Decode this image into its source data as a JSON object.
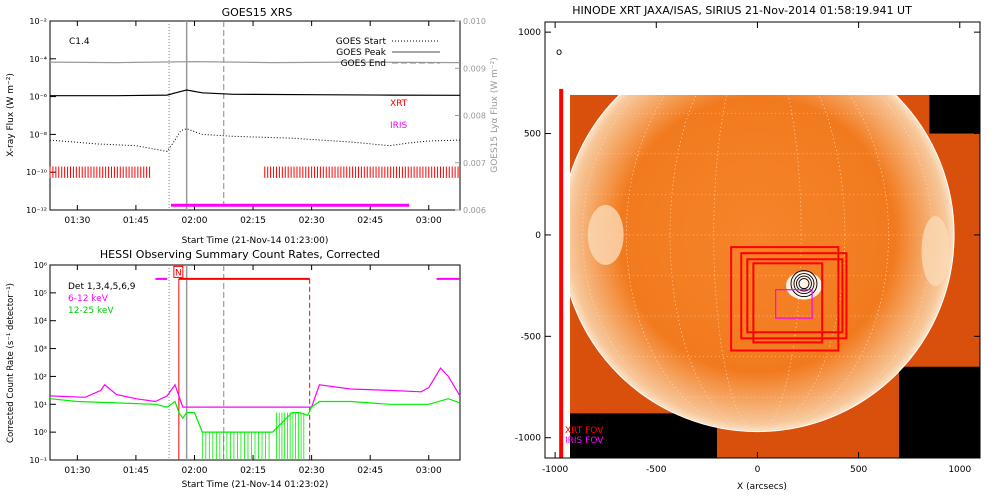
{
  "chart_data": [
    {
      "type": "line",
      "title": "GOES15 XRS",
      "xlabel": "Start Time (21-Nov-14 01:23:00)",
      "ylabel": "X-ray Flux (W m⁻²)",
      "ylabel_right": "GOES15 Lyα Flux (W m⁻²)",
      "x_ticks": [
        "01:30",
        "01:45",
        "02:00",
        "02:15",
        "02:30",
        "02:45",
        "03:00"
      ],
      "x_tick_minutes": [
        90,
        105,
        120,
        135,
        150,
        165,
        180
      ],
      "xlim_minutes": [
        83,
        188
      ],
      "ylim_log10": [
        -12,
        -2
      ],
      "y_ticks": [
        "10⁻²",
        "10⁻⁴",
        "10⁻⁶",
        "10⁻⁸",
        "10⁻¹⁰",
        "10⁻¹²"
      ],
      "y_tick_log10": [
        -2,
        -4,
        -6,
        -8,
        -10,
        -12
      ],
      "ylim_right": [
        0.006,
        0.01
      ],
      "y_ticks_right": [
        "0.010",
        "0.009",
        "0.008",
        "0.007",
        "0.006"
      ],
      "y_tick_right_values": [
        0.01,
        0.009,
        0.008,
        0.007,
        0.006
      ],
      "class_label": "C1.4",
      "legend": [
        "GOES Start",
        "GOES Peak",
        "GOES End"
      ],
      "legend_placement": "top-right",
      "goes_start_min": 113.5,
      "goes_peak_min": 118.0,
      "goes_end_min": 127.5,
      "series": [
        {
          "name": "",
          "color": "#000000",
          "x": [
            83,
            100,
            113,
            116,
            118,
            122,
            130,
            150,
            170,
            188
          ],
          "log10_y": [
            -5.95,
            -5.95,
            -5.92,
            -5.75,
            -5.65,
            -5.8,
            -5.88,
            -5.9,
            -5.92,
            -5.93
          ]
        },
        {
          "name": "",
          "color": "#000000",
          "dotted": true,
          "x": [
            83,
            95,
            105,
            113,
            115,
            116.5,
            118,
            122,
            130,
            145,
            160,
            170,
            175,
            180,
            188
          ],
          "log10_y": [
            -8.3,
            -8.5,
            -8.6,
            -8.9,
            -8.3,
            -7.8,
            -7.7,
            -8.0,
            -8.1,
            -8.2,
            -8.4,
            -8.6,
            -8.45,
            -8.35,
            -8.3
          ]
        },
        {
          "name": "",
          "color": "#9a9a9a",
          "x": [
            83,
            100,
            120,
            140,
            160,
            188
          ],
          "right_y": [
            0.00913,
            0.00912,
            0.00914,
            0.00912,
            0.00913,
            0.00912
          ]
        }
      ],
      "bars": [
        {
          "name": "XRT",
          "color": "#ff0000",
          "intervals_min": [
            [
              83,
              109
            ],
            [
              138,
              188
            ]
          ]
        },
        {
          "name": "IRIS",
          "color": "#ff00ff",
          "intervals_min": [
            [
              114,
              175
            ]
          ]
        }
      ]
    },
    {
      "type": "line",
      "title": "HESSI Observing Summary Count Rates, Corrected",
      "xlabel": "Start Time (21-Nov-14 01:23:02)",
      "ylabel": "Corrected Count Rate (s⁻¹ detector⁻¹)",
      "x_ticks": [
        "01:30",
        "01:45",
        "02:00",
        "02:15",
        "02:30",
        "02:45",
        "03:00"
      ],
      "x_tick_minutes": [
        90,
        105,
        120,
        135,
        150,
        165,
        180
      ],
      "xlim_minutes": [
        83,
        188
      ],
      "ylim_log10": [
        -1,
        6
      ],
      "y_ticks": [
        "10⁶",
        "10⁵",
        "10⁴",
        "10³",
        "10²",
        "10¹",
        "10⁰",
        "10⁻¹"
      ],
      "y_tick_log10": [
        6,
        5,
        4,
        3,
        2,
        1,
        0,
        -1
      ],
      "legend": [
        "Det 1,3,4,5,6,9",
        "6-12 keV",
        "12-25 keV"
      ],
      "legend_placement": "top-left",
      "night_label": "N",
      "goes_start_min": 113.5,
      "goes_peak_min": 118.0,
      "goes_end_min": 127.5,
      "markers_red_min": [
        116,
        149.5
      ],
      "series": [
        {
          "name": "6-12 keV",
          "color": "#ff00ff",
          "x": [
            83,
            92,
            96,
            97,
            100,
            105,
            110,
            113,
            115,
            117,
            150,
            152,
            160,
            170,
            178,
            180,
            183,
            185,
            188
          ],
          "log10_y": [
            1.3,
            1.25,
            1.5,
            1.7,
            1.35,
            1.2,
            1.1,
            1.3,
            1.7,
            0.9,
            0.9,
            1.7,
            1.55,
            1.5,
            1.45,
            1.6,
            2.3,
            2.0,
            1.3
          ]
        },
        {
          "name": "12-25 keV",
          "color": "#00ee00",
          "x": [
            83,
            90,
            100,
            110,
            113,
            115,
            116,
            117,
            118,
            120,
            122,
            140,
            145,
            147,
            149,
            150,
            152,
            160,
            170,
            180,
            185,
            188
          ],
          "log10_y": [
            1.2,
            1.1,
            1.05,
            1.0,
            0.9,
            1.1,
            0.7,
            0.5,
            0.7,
            0.7,
            0.0,
            0.0,
            0.7,
            0.7,
            0.6,
            0.9,
            1.1,
            1.1,
            1.0,
            1.0,
            1.2,
            1.05
          ]
        }
      ]
    },
    {
      "type": "heatmap",
      "title": "HINODE XRT JAXA/ISAS, SIRIUS 21-Nov-2014 01:58:19.941 UT",
      "xlabel": "X (arcsecs)",
      "ylabel": "",
      "xlim": [
        -1050,
        1100
      ],
      "ylim": [
        -1100,
        1050
      ],
      "x_ticks": [
        "-1000",
        "-500",
        "0",
        "500",
        "1000"
      ],
      "x_tick_values": [
        -1000,
        -500,
        0,
        500,
        1000
      ],
      "y_ticks": [
        "1000",
        "500",
        "0",
        "-500",
        "-1000"
      ],
      "y_tick_values": [
        1000,
        500,
        0,
        -500,
        -1000
      ],
      "solar_radius_arcsec": 972,
      "corner_mark": "o",
      "labels": [
        "XRT FOV",
        "IRIS FOV"
      ],
      "label_colors": [
        "#ff0000",
        "#ff00ff"
      ],
      "xrt_fov": [
        -980,
        720
      ],
      "flare_center": [
        230,
        -240
      ],
      "xrt_boxes": [
        [
          -130,
          -570,
          400,
          -60
        ],
        [
          -50,
          -480,
          420,
          -120
        ],
        [
          -80,
          -510,
          440,
          -90
        ],
        [
          -20,
          -530,
          320,
          -140
        ]
      ],
      "iris_box": [
        90,
        -410,
        270,
        -270
      ]
    }
  ]
}
